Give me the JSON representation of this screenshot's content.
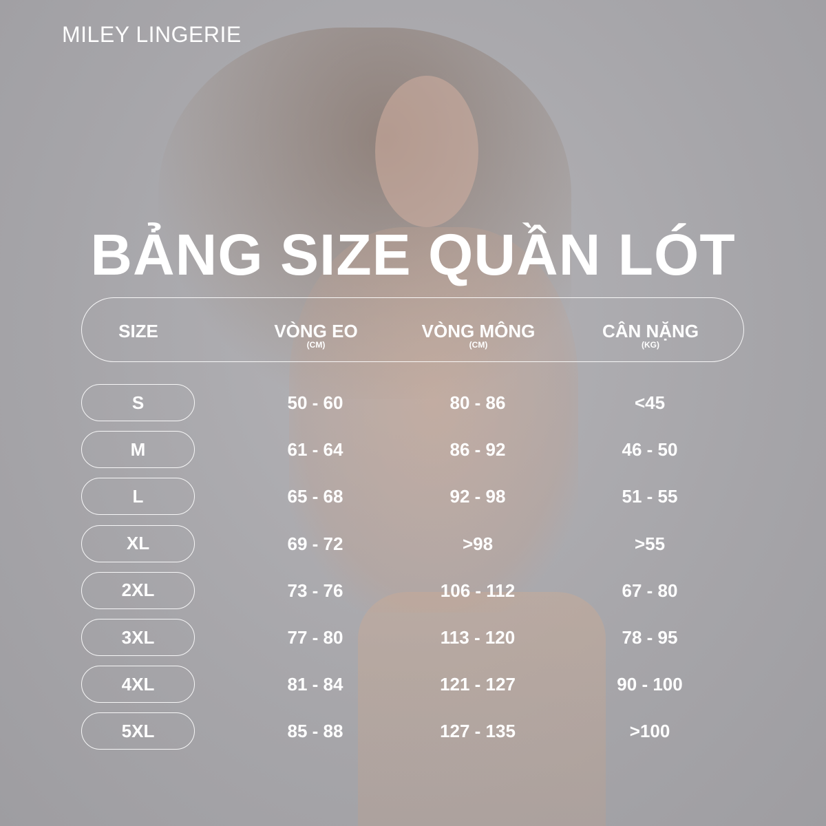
{
  "brand": "MILEY LINGERIE",
  "title": "BẢNG SIZE QUẦN LÓT",
  "table": {
    "headers": [
      {
        "label": "SIZE",
        "unit": ""
      },
      {
        "label": "VÒNG EO",
        "unit": "(CM)"
      },
      {
        "label": "VÒNG MÔNG",
        "unit": "(CM)"
      },
      {
        "label": "CÂN NẶNG",
        "unit": "(KG)"
      }
    ],
    "rows": [
      {
        "size": "S",
        "waist": "50 - 60",
        "hip": "80 - 86",
        "weight": "<45"
      },
      {
        "size": "M",
        "waist": "61 - 64",
        "hip": "86 - 92",
        "weight": "46 - 50"
      },
      {
        "size": "L",
        "waist": "65 - 68",
        "hip": "92 - 98",
        "weight": "51 - 55"
      },
      {
        "size": "XL",
        "waist": "69 - 72",
        "hip": ">98",
        "weight": ">55"
      },
      {
        "size": "2XL",
        "waist": "73 - 76",
        "hip": "106 - 112",
        "weight": "67 - 80"
      },
      {
        "size": "3XL",
        "waist": "77 - 80",
        "hip": "113 - 120",
        "weight": "78 - 95"
      },
      {
        "size": "4XL",
        "waist": "81 - 84",
        "hip": "121 - 127",
        "weight": "90 - 100"
      },
      {
        "size": "5XL",
        "waist": "85 - 88",
        "hip": "127 - 135",
        "weight": ">100"
      }
    ]
  }
}
